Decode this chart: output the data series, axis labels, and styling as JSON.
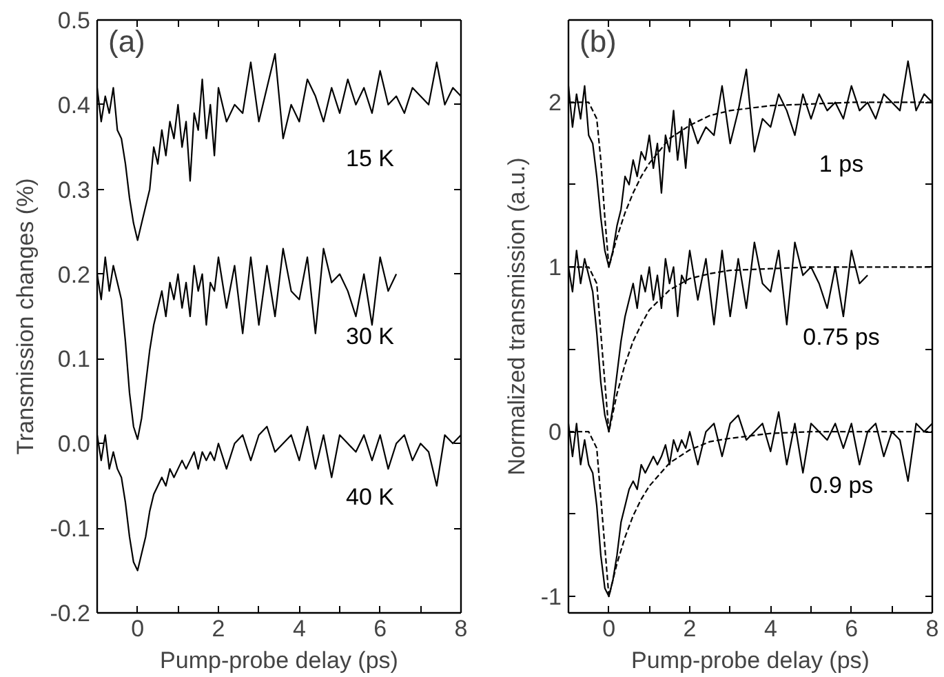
{
  "chart_data": [
    {
      "type": "line",
      "xlabel": "Pump-probe delay (ps)",
      "ylabel": "Transmission changes (%)",
      "xlim": [
        -1,
        8
      ],
      "ylim": [
        -0.2,
        0.5
      ],
      "xticks": [
        {
          "value": -1,
          "label": null
        },
        0,
        {
          "value": 1,
          "label": null
        },
        2,
        {
          "value": 3,
          "label": null
        },
        4,
        {
          "value": 5,
          "label": null
        },
        6,
        {
          "value": 7,
          "label": null
        },
        8
      ],
      "yticks": [
        -0.2,
        -0.1,
        {
          "value": 0,
          "label": "0.0"
        },
        0.1,
        0.2,
        0.3,
        0.4,
        0.5
      ],
      "grid": false,
      "line_style": "solid",
      "marker": "none",
      "annotations": [
        "(a)"
      ],
      "series": [
        {
          "name": "15 K",
          "color": "#000000",
          "x": [
            -1,
            -0.9,
            -0.8,
            -0.7,
            -0.6,
            -0.5,
            -0.4,
            -0.3,
            -0.2,
            -0.1,
            0,
            0.1,
            0.2,
            0.3,
            0.4,
            0.5,
            0.6,
            0.7,
            0.8,
            0.9,
            1.0,
            1.1,
            1.2,
            1.3,
            1.4,
            1.5,
            1.6,
            1.7,
            1.8,
            1.9,
            2.0,
            2.2,
            2.4,
            2.6,
            2.8,
            3.0,
            3.2,
            3.4,
            3.6,
            3.8,
            4.0,
            4.2,
            4.4,
            4.6,
            4.8,
            5.0,
            5.2,
            5.4,
            5.6,
            5.8,
            6.0,
            6.2,
            6.4,
            6.6,
            6.8,
            7.0,
            7.2,
            7.4,
            7.6,
            7.8,
            8.0
          ],
          "values": [
            0.42,
            0.38,
            0.41,
            0.39,
            0.42,
            0.37,
            0.36,
            0.33,
            0.29,
            0.26,
            0.24,
            0.26,
            0.28,
            0.3,
            0.35,
            0.33,
            0.37,
            0.34,
            0.38,
            0.36,
            0.4,
            0.35,
            0.38,
            0.31,
            0.39,
            0.37,
            0.43,
            0.36,
            0.4,
            0.34,
            0.42,
            0.38,
            0.4,
            0.39,
            0.45,
            0.38,
            0.42,
            0.46,
            0.36,
            0.4,
            0.38,
            0.43,
            0.41,
            0.38,
            0.42,
            0.39,
            0.43,
            0.4,
            0.42,
            0.39,
            0.44,
            0.4,
            0.41,
            0.39,
            0.42,
            0.41,
            0.4,
            0.45,
            0.4,
            0.42,
            0.41
          ]
        },
        {
          "name": "30 K",
          "color": "#000000",
          "x": [
            -1,
            -0.9,
            -0.8,
            -0.7,
            -0.6,
            -0.5,
            -0.4,
            -0.3,
            -0.2,
            -0.1,
            0,
            0.1,
            0.2,
            0.3,
            0.4,
            0.5,
            0.6,
            0.7,
            0.8,
            0.9,
            1.0,
            1.1,
            1.2,
            1.3,
            1.4,
            1.5,
            1.6,
            1.7,
            1.8,
            1.9,
            2.0,
            2.2,
            2.4,
            2.6,
            2.8,
            3.0,
            3.2,
            3.4,
            3.6,
            3.8,
            4.0,
            4.2,
            4.4,
            4.6,
            4.8,
            5.0,
            5.2,
            5.4,
            5.6,
            5.8,
            6.0,
            6.2,
            6.4
          ],
          "values": [
            0.2,
            0.17,
            0.22,
            0.18,
            0.21,
            0.19,
            0.17,
            0.12,
            0.06,
            0.02,
            0.005,
            0.03,
            0.07,
            0.11,
            0.14,
            0.16,
            0.18,
            0.15,
            0.19,
            0.17,
            0.2,
            0.16,
            0.19,
            0.15,
            0.21,
            0.18,
            0.2,
            0.14,
            0.19,
            0.18,
            0.22,
            0.16,
            0.21,
            0.13,
            0.22,
            0.14,
            0.21,
            0.15,
            0.23,
            0.18,
            0.17,
            0.22,
            0.13,
            0.23,
            0.19,
            0.2,
            0.18,
            0.15,
            0.2,
            0.14,
            0.22,
            0.18,
            0.2
          ]
        },
        {
          "name": "40 K",
          "color": "#000000",
          "x": [
            -1,
            -0.9,
            -0.8,
            -0.7,
            -0.6,
            -0.5,
            -0.4,
            -0.3,
            -0.2,
            -0.1,
            0,
            0.1,
            0.2,
            0.3,
            0.4,
            0.5,
            0.6,
            0.7,
            0.8,
            0.9,
            1.0,
            1.1,
            1.2,
            1.3,
            1.4,
            1.5,
            1.6,
            1.7,
            1.8,
            1.9,
            2.0,
            2.2,
            2.4,
            2.6,
            2.8,
            3.0,
            3.2,
            3.4,
            3.6,
            3.8,
            4.0,
            4.2,
            4.4,
            4.6,
            4.8,
            5.0,
            5.2,
            5.4,
            5.6,
            5.8,
            6.0,
            6.2,
            6.4,
            6.6,
            6.8,
            7.0,
            7.2,
            7.4,
            7.6,
            7.8,
            8.0
          ],
          "values": [
            0.01,
            -0.02,
            0.01,
            -0.03,
            -0.01,
            -0.03,
            -0.04,
            -0.07,
            -0.11,
            -0.14,
            -0.15,
            -0.13,
            -0.11,
            -0.08,
            -0.06,
            -0.05,
            -0.04,
            -0.05,
            -0.03,
            -0.04,
            -0.03,
            -0.02,
            -0.03,
            -0.02,
            -0.01,
            -0.03,
            -0.01,
            -0.02,
            -0.01,
            -0.02,
            0.0,
            -0.03,
            0.0,
            0.01,
            -0.02,
            0.01,
            0.02,
            -0.01,
            0.0,
            0.01,
            -0.02,
            0.02,
            -0.03,
            0.01,
            -0.04,
            0.01,
            0.0,
            -0.01,
            0.01,
            -0.02,
            0.01,
            -0.03,
            0.0,
            0.01,
            -0.02,
            0.0,
            -0.01,
            -0.05,
            0.01,
            0.0,
            0.01
          ]
        }
      ]
    },
    {
      "type": "line",
      "xlabel": "Pump-probe delay (ps)",
      "ylabel": "Normalized transmission (a.u.)",
      "xlim": [
        -1,
        8
      ],
      "ylim": [
        -1.1,
        2.5
      ],
      "xticks": [
        {
          "value": -1,
          "label": null
        },
        0,
        {
          "value": 1,
          "label": null
        },
        2,
        {
          "value": 3,
          "label": null
        },
        4,
        {
          "value": 5,
          "label": null
        },
        6,
        {
          "value": 7,
          "label": null
        },
        8
      ],
      "yticks": [
        -1,
        {
          "value": -0.5,
          "label": null
        },
        0,
        {
          "value": 0.5,
          "label": null
        },
        1,
        {
          "value": 1.5,
          "label": null
        },
        2
      ],
      "grid": false,
      "line_style": "solid",
      "marker": "none",
      "annotations": [
        "(b)"
      ],
      "series": [
        {
          "name": "1 ps",
          "color": "#000000",
          "x": [
            -1,
            -0.9,
            -0.8,
            -0.7,
            -0.6,
            -0.5,
            -0.4,
            -0.3,
            -0.2,
            -0.1,
            0,
            0.1,
            0.2,
            0.3,
            0.4,
            0.5,
            0.6,
            0.7,
            0.8,
            0.9,
            1.0,
            1.1,
            1.2,
            1.3,
            1.4,
            1.5,
            1.6,
            1.7,
            1.8,
            1.9,
            2.0,
            2.2,
            2.4,
            2.6,
            2.8,
            3.0,
            3.2,
            3.4,
            3.6,
            3.8,
            4.0,
            4.2,
            4.4,
            4.6,
            4.8,
            5.0,
            5.2,
            5.4,
            5.6,
            5.8,
            6.0,
            6.2,
            6.4,
            6.6,
            6.8,
            7.0,
            7.2,
            7.4,
            7.6,
            7.8,
            8.0
          ],
          "values": [
            2.1,
            1.85,
            2.05,
            1.9,
            2.1,
            1.8,
            1.75,
            1.55,
            1.3,
            1.1,
            1.0,
            1.1,
            1.25,
            1.35,
            1.55,
            1.5,
            1.65,
            1.55,
            1.7,
            1.65,
            1.8,
            1.6,
            1.75,
            1.45,
            1.8,
            1.7,
            1.95,
            1.65,
            1.85,
            1.6,
            1.9,
            1.75,
            1.85,
            1.8,
            2.1,
            1.75,
            1.95,
            2.2,
            1.7,
            1.9,
            1.85,
            2.05,
            1.95,
            1.8,
            2.05,
            1.9,
            2.05,
            1.95,
            2.0,
            1.9,
            2.1,
            1.95,
            2.0,
            1.9,
            2.05,
            2.0,
            1.95,
            2.25,
            1.95,
            2.05,
            2.0
          ]
        },
        {
          "name": "0.75 ps",
          "color": "#000000",
          "x": [
            -1,
            -0.9,
            -0.8,
            -0.7,
            -0.6,
            -0.5,
            -0.4,
            -0.3,
            -0.2,
            -0.1,
            0,
            0.1,
            0.2,
            0.3,
            0.4,
            0.5,
            0.6,
            0.7,
            0.8,
            0.9,
            1.0,
            1.1,
            1.2,
            1.3,
            1.4,
            1.5,
            1.6,
            1.7,
            1.8,
            1.9,
            2.0,
            2.2,
            2.4,
            2.6,
            2.8,
            3.0,
            3.2,
            3.4,
            3.6,
            3.8,
            4.0,
            4.2,
            4.4,
            4.6,
            4.8,
            5.0,
            5.2,
            5.4,
            5.6,
            5.8,
            6.0,
            6.2,
            6.4
          ],
          "values": [
            1.0,
            0.85,
            1.1,
            0.9,
            1.05,
            0.95,
            0.85,
            0.6,
            0.3,
            0.1,
            0.0,
            0.15,
            0.35,
            0.55,
            0.7,
            0.8,
            0.9,
            0.75,
            0.95,
            0.85,
            1.0,
            0.8,
            0.95,
            0.75,
            1.05,
            0.9,
            1.0,
            0.7,
            0.95,
            0.9,
            1.1,
            0.8,
            1.05,
            0.65,
            1.1,
            0.7,
            1.05,
            0.75,
            1.15,
            0.9,
            0.85,
            1.1,
            0.65,
            1.15,
            0.95,
            1.0,
            0.9,
            0.75,
            1.0,
            0.7,
            1.1,
            0.9,
            0.95
          ]
        },
        {
          "name": "0.9 ps",
          "color": "#000000",
          "x": [
            -1,
            -0.9,
            -0.8,
            -0.7,
            -0.6,
            -0.5,
            -0.4,
            -0.3,
            -0.2,
            -0.1,
            0,
            0.1,
            0.2,
            0.3,
            0.4,
            0.5,
            0.6,
            0.7,
            0.8,
            0.9,
            1.0,
            1.1,
            1.2,
            1.3,
            1.4,
            1.5,
            1.6,
            1.7,
            1.8,
            1.9,
            2.0,
            2.2,
            2.4,
            2.6,
            2.8,
            3.0,
            3.2,
            3.4,
            3.6,
            3.8,
            4.0,
            4.2,
            4.4,
            4.6,
            4.8,
            5.0,
            5.2,
            5.4,
            5.6,
            5.8,
            6.0,
            6.2,
            6.4,
            6.6,
            6.8,
            7.0,
            7.2,
            7.4,
            7.6,
            7.8,
            8.0
          ],
          "values": [
            0.05,
            -0.15,
            0.05,
            -0.2,
            -0.05,
            -0.2,
            -0.25,
            -0.45,
            -0.75,
            -0.95,
            -1.0,
            -0.9,
            -0.75,
            -0.55,
            -0.45,
            -0.35,
            -0.3,
            -0.35,
            -0.2,
            -0.25,
            -0.2,
            -0.15,
            -0.2,
            -0.15,
            -0.08,
            -0.2,
            -0.05,
            -0.12,
            -0.05,
            -0.1,
            0.0,
            -0.2,
            0.0,
            0.05,
            -0.15,
            0.05,
            0.1,
            -0.05,
            0.0,
            0.05,
            -0.12,
            0.12,
            -0.2,
            0.05,
            -0.25,
            0.05,
            0.0,
            -0.05,
            0.05,
            -0.1,
            0.05,
            -0.2,
            0.0,
            0.05,
            -0.15,
            0.0,
            -0.05,
            -0.3,
            0.05,
            0.0,
            0.05
          ]
        },
        {
          "color": "#000000",
          "line_style": "dashed",
          "x": [
            -1,
            -0.5,
            -0.3,
            -0.2,
            -0.1,
            0,
            0.2,
            0.4,
            0.6,
            0.8,
            1,
            1.5,
            2,
            2.5,
            3,
            4,
            5,
            6,
            7,
            8
          ],
          "values": [
            2,
            2,
            1.9,
            1.65,
            1.3,
            1.0,
            1.18,
            1.33,
            1.45,
            1.55,
            1.63,
            1.78,
            1.86,
            1.92,
            1.95,
            1.98,
            1.99,
            2,
            2,
            2
          ]
        },
        {
          "color": "#000000",
          "line_style": "dashed",
          "x": [
            -1,
            -0.5,
            -0.3,
            -0.2,
            -0.1,
            0,
            0.2,
            0.4,
            0.6,
            0.8,
            1,
            1.5,
            2,
            2.5,
            3,
            4,
            5,
            6,
            7,
            8
          ],
          "values": [
            1,
            1,
            0.9,
            0.6,
            0.3,
            0.0,
            0.23,
            0.41,
            0.55,
            0.65,
            0.74,
            0.86,
            0.93,
            0.96,
            0.98,
            0.99,
            1,
            1,
            1,
            1
          ]
        },
        {
          "color": "#000000",
          "line_style": "dashed",
          "x": [
            -1,
            -0.5,
            -0.3,
            -0.2,
            -0.1,
            0,
            0.2,
            0.4,
            0.6,
            0.8,
            1,
            1.5,
            2,
            2.5,
            3,
            4,
            5,
            6,
            7,
            8
          ],
          "values": [
            0,
            0,
            -0.1,
            -0.4,
            -0.7,
            -1.0,
            -0.8,
            -0.64,
            -0.51,
            -0.41,
            -0.33,
            -0.19,
            -0.11,
            -0.06,
            -0.04,
            -0.01,
            0,
            0,
            0,
            0
          ]
        }
      ]
    }
  ]
}
